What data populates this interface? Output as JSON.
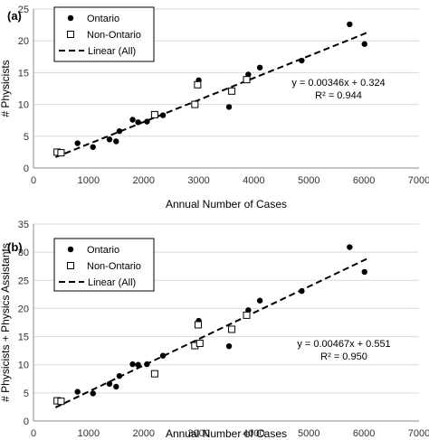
{
  "chart_data": [
    {
      "type": "scatter",
      "panel_label": "(a)",
      "xlabel": "Annual Number of Cases",
      "ylabel": "# Physicists",
      "xlim": [
        0,
        7000
      ],
      "ylim": [
        0,
        25
      ],
      "x_ticks": [
        0,
        1000,
        2000,
        3000,
        4000,
        5000,
        6000,
        7000
      ],
      "y_ticks": [
        0,
        5,
        10,
        15,
        20,
        25
      ],
      "grid": "horizontal",
      "legend_position": "top-left",
      "series": [
        {
          "name": "Ontario",
          "marker": "filled-circle",
          "points": [
            [
              800,
              3.9
            ],
            [
              1080,
              3.3
            ],
            [
              1380,
              4.5
            ],
            [
              1500,
              4.2
            ],
            [
              1560,
              5.8
            ],
            [
              1800,
              7.6
            ],
            [
              1900,
              7.2
            ],
            [
              2060,
              7.3
            ],
            [
              2350,
              8.3
            ],
            [
              3000,
              13.8
            ],
            [
              3550,
              9.6
            ],
            [
              3900,
              14.7
            ],
            [
              4110,
              15.8
            ],
            [
              4870,
              16.9
            ],
            [
              5740,
              22.6
            ],
            [
              6010,
              19.5
            ]
          ]
        },
        {
          "name": "Non-Ontario",
          "marker": "open-square",
          "points": [
            [
              430,
              2.5
            ],
            [
              500,
              2.4
            ],
            [
              2200,
              8.4
            ],
            [
              2930,
              10.0
            ],
            [
              2980,
              13.1
            ],
            [
              3600,
              12.1
            ],
            [
              3870,
              13.9
            ]
          ]
        },
        {
          "name": "Linear (All)",
          "style": "dashed-line",
          "x_range": [
            400,
            6100
          ],
          "slope": 0.00346,
          "intercept": 0.324
        }
      ],
      "annotations": [
        "y = 0.00346x + 0.324",
        "R² = 0.944"
      ]
    },
    {
      "type": "scatter",
      "panel_label": "(b)",
      "xlabel": "Annual Number of Cases",
      "ylabel": "# Physicists + Physics Assistants",
      "xlim": [
        0,
        7000
      ],
      "ylim": [
        0,
        35
      ],
      "x_ticks": [
        0,
        1000,
        2000,
        3000,
        4000,
        5000,
        6000,
        7000
      ],
      "y_ticks": [
        0,
        5,
        10,
        15,
        20,
        25,
        30,
        35
      ],
      "grid": "horizontal",
      "legend_position": "top-left",
      "series": [
        {
          "name": "Ontario",
          "marker": "filled-circle",
          "points": [
            [
              800,
              5.2
            ],
            [
              1080,
              4.9
            ],
            [
              1380,
              6.6
            ],
            [
              1500,
              6.1
            ],
            [
              1560,
              8.0
            ],
            [
              1800,
              10.1
            ],
            [
              1900,
              10.0
            ],
            [
              2060,
              10.1
            ],
            [
              2350,
              11.6
            ],
            [
              3000,
              17.8
            ],
            [
              3550,
              13.3
            ],
            [
              3900,
              19.7
            ],
            [
              4110,
              21.4
            ],
            [
              4870,
              23.1
            ],
            [
              5740,
              30.9
            ],
            [
              6010,
              26.5
            ]
          ]
        },
        {
          "name": "Non-Ontario",
          "marker": "open-square",
          "points": [
            [
              430,
              3.6
            ],
            [
              500,
              3.5
            ],
            [
              2200,
              8.4
            ],
            [
              2930,
              13.4
            ],
            [
              2990,
              17.1
            ],
            [
              3020,
              13.8
            ],
            [
              3600,
              16.3
            ],
            [
              3870,
              18.8
            ]
          ]
        },
        {
          "name": "Linear (All)",
          "style": "dashed-line",
          "x_range": [
            400,
            6100
          ],
          "slope": 0.00467,
          "intercept": 0.551
        }
      ],
      "annotations": [
        "y = 0.00467x + 0.551",
        "R² = 0.950"
      ]
    }
  ]
}
